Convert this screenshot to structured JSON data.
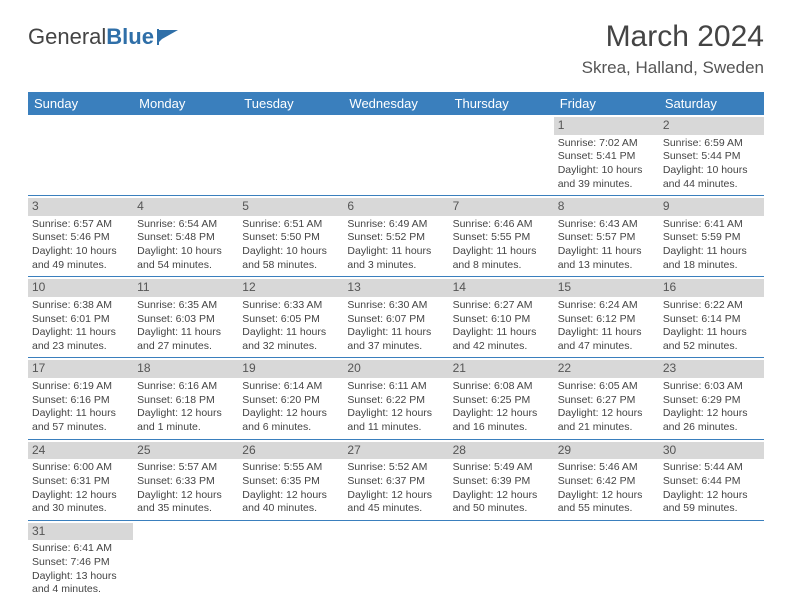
{
  "logo": {
    "text1": "General",
    "text2": "Blue"
  },
  "title": "March 2024",
  "location": "Skrea, Halland, Sweden",
  "colors": {
    "headerBlue": "#3a7fbd",
    "dayBarGray": "#d8d8d8",
    "textGray": "#444444",
    "logoBlue": "#2f6fa8"
  },
  "weekdays": [
    "Sunday",
    "Monday",
    "Tuesday",
    "Wednesday",
    "Thursday",
    "Friday",
    "Saturday"
  ],
  "weeks": [
    [
      {
        "day": "",
        "lines": []
      },
      {
        "day": "",
        "lines": []
      },
      {
        "day": "",
        "lines": []
      },
      {
        "day": "",
        "lines": []
      },
      {
        "day": "",
        "lines": []
      },
      {
        "day": "1",
        "lines": [
          "Sunrise: 7:02 AM",
          "Sunset: 5:41 PM",
          "Daylight: 10 hours and 39 minutes."
        ]
      },
      {
        "day": "2",
        "lines": [
          "Sunrise: 6:59 AM",
          "Sunset: 5:44 PM",
          "Daylight: 10 hours and 44 minutes."
        ]
      }
    ],
    [
      {
        "day": "3",
        "lines": [
          "Sunrise: 6:57 AM",
          "Sunset: 5:46 PM",
          "Daylight: 10 hours and 49 minutes."
        ]
      },
      {
        "day": "4",
        "lines": [
          "Sunrise: 6:54 AM",
          "Sunset: 5:48 PM",
          "Daylight: 10 hours and 54 minutes."
        ]
      },
      {
        "day": "5",
        "lines": [
          "Sunrise: 6:51 AM",
          "Sunset: 5:50 PM",
          "Daylight: 10 hours and 58 minutes."
        ]
      },
      {
        "day": "6",
        "lines": [
          "Sunrise: 6:49 AM",
          "Sunset: 5:52 PM",
          "Daylight: 11 hours and 3 minutes."
        ]
      },
      {
        "day": "7",
        "lines": [
          "Sunrise: 6:46 AM",
          "Sunset: 5:55 PM",
          "Daylight: 11 hours and 8 minutes."
        ]
      },
      {
        "day": "8",
        "lines": [
          "Sunrise: 6:43 AM",
          "Sunset: 5:57 PM",
          "Daylight: 11 hours and 13 minutes."
        ]
      },
      {
        "day": "9",
        "lines": [
          "Sunrise: 6:41 AM",
          "Sunset: 5:59 PM",
          "Daylight: 11 hours and 18 minutes."
        ]
      }
    ],
    [
      {
        "day": "10",
        "lines": [
          "Sunrise: 6:38 AM",
          "Sunset: 6:01 PM",
          "Daylight: 11 hours and 23 minutes."
        ]
      },
      {
        "day": "11",
        "lines": [
          "Sunrise: 6:35 AM",
          "Sunset: 6:03 PM",
          "Daylight: 11 hours and 27 minutes."
        ]
      },
      {
        "day": "12",
        "lines": [
          "Sunrise: 6:33 AM",
          "Sunset: 6:05 PM",
          "Daylight: 11 hours and 32 minutes."
        ]
      },
      {
        "day": "13",
        "lines": [
          "Sunrise: 6:30 AM",
          "Sunset: 6:07 PM",
          "Daylight: 11 hours and 37 minutes."
        ]
      },
      {
        "day": "14",
        "lines": [
          "Sunrise: 6:27 AM",
          "Sunset: 6:10 PM",
          "Daylight: 11 hours and 42 minutes."
        ]
      },
      {
        "day": "15",
        "lines": [
          "Sunrise: 6:24 AM",
          "Sunset: 6:12 PM",
          "Daylight: 11 hours and 47 minutes."
        ]
      },
      {
        "day": "16",
        "lines": [
          "Sunrise: 6:22 AM",
          "Sunset: 6:14 PM",
          "Daylight: 11 hours and 52 minutes."
        ]
      }
    ],
    [
      {
        "day": "17",
        "lines": [
          "Sunrise: 6:19 AM",
          "Sunset: 6:16 PM",
          "Daylight: 11 hours and 57 minutes."
        ]
      },
      {
        "day": "18",
        "lines": [
          "Sunrise: 6:16 AM",
          "Sunset: 6:18 PM",
          "Daylight: 12 hours and 1 minute."
        ]
      },
      {
        "day": "19",
        "lines": [
          "Sunrise: 6:14 AM",
          "Sunset: 6:20 PM",
          "Daylight: 12 hours and 6 minutes."
        ]
      },
      {
        "day": "20",
        "lines": [
          "Sunrise: 6:11 AM",
          "Sunset: 6:22 PM",
          "Daylight: 12 hours and 11 minutes."
        ]
      },
      {
        "day": "21",
        "lines": [
          "Sunrise: 6:08 AM",
          "Sunset: 6:25 PM",
          "Daylight: 12 hours and 16 minutes."
        ]
      },
      {
        "day": "22",
        "lines": [
          "Sunrise: 6:05 AM",
          "Sunset: 6:27 PM",
          "Daylight: 12 hours and 21 minutes."
        ]
      },
      {
        "day": "23",
        "lines": [
          "Sunrise: 6:03 AM",
          "Sunset: 6:29 PM",
          "Daylight: 12 hours and 26 minutes."
        ]
      }
    ],
    [
      {
        "day": "24",
        "lines": [
          "Sunrise: 6:00 AM",
          "Sunset: 6:31 PM",
          "Daylight: 12 hours and 30 minutes."
        ]
      },
      {
        "day": "25",
        "lines": [
          "Sunrise: 5:57 AM",
          "Sunset: 6:33 PM",
          "Daylight: 12 hours and 35 minutes."
        ]
      },
      {
        "day": "26",
        "lines": [
          "Sunrise: 5:55 AM",
          "Sunset: 6:35 PM",
          "Daylight: 12 hours and 40 minutes."
        ]
      },
      {
        "day": "27",
        "lines": [
          "Sunrise: 5:52 AM",
          "Sunset: 6:37 PM",
          "Daylight: 12 hours and 45 minutes."
        ]
      },
      {
        "day": "28",
        "lines": [
          "Sunrise: 5:49 AM",
          "Sunset: 6:39 PM",
          "Daylight: 12 hours and 50 minutes."
        ]
      },
      {
        "day": "29",
        "lines": [
          "Sunrise: 5:46 AM",
          "Sunset: 6:42 PM",
          "Daylight: 12 hours and 55 minutes."
        ]
      },
      {
        "day": "30",
        "lines": [
          "Sunrise: 5:44 AM",
          "Sunset: 6:44 PM",
          "Daylight: 12 hours and 59 minutes."
        ]
      }
    ],
    [
      {
        "day": "31",
        "lines": [
          "Sunrise: 6:41 AM",
          "Sunset: 7:46 PM",
          "Daylight: 13 hours and 4 minutes."
        ]
      },
      {
        "day": "",
        "lines": []
      },
      {
        "day": "",
        "lines": []
      },
      {
        "day": "",
        "lines": []
      },
      {
        "day": "",
        "lines": []
      },
      {
        "day": "",
        "lines": []
      },
      {
        "day": "",
        "lines": []
      }
    ]
  ]
}
